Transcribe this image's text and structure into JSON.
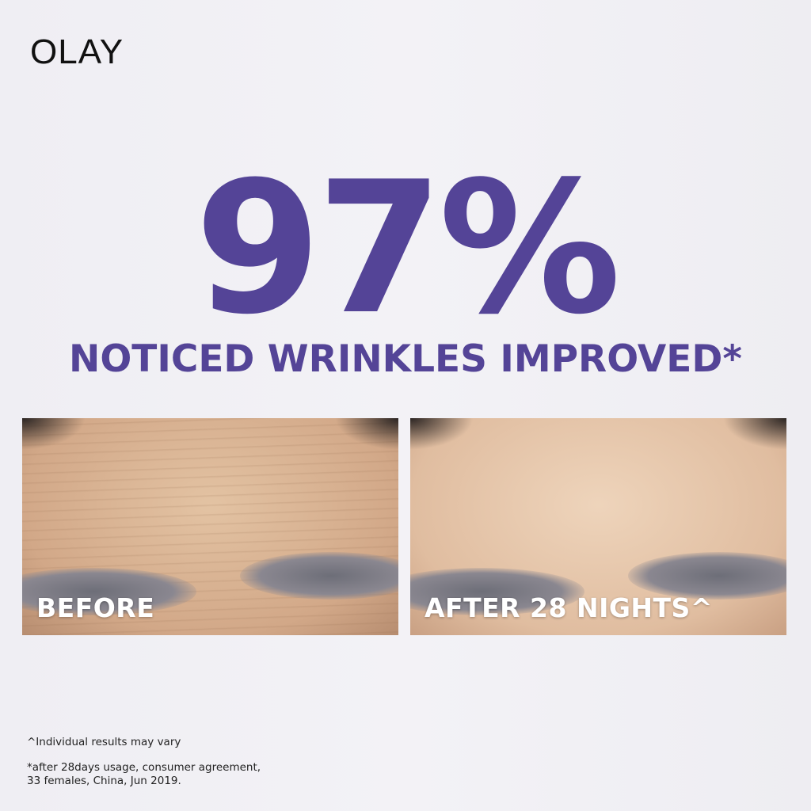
{
  "brand": {
    "logo": "OLAY"
  },
  "headline": {
    "stat": "97%",
    "subtitle": "NOTICED WRINKLES IMPROVED*",
    "color": "#544497"
  },
  "photos": [
    {
      "label": "BEFORE"
    },
    {
      "label": "AFTER 28 NIGHTS^"
    }
  ],
  "footnotes": [
    "^Individual results may vary",
    "*after 28days usage, consumer agreement,",
    "33 females, China, Jun 2019."
  ]
}
